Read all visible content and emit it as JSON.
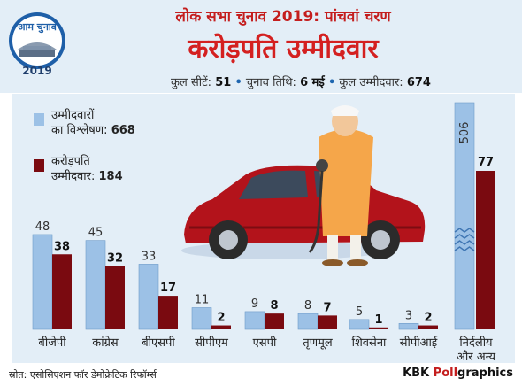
{
  "header": {
    "supertitle": "लोक सभा चुनाव 2019: पांचवां चरण",
    "title": "करोड़पति उम्मीदवार",
    "logo_text": "आम चुनाव",
    "logo_year": "2019"
  },
  "stats": {
    "seats_label": "कुल सीटें:",
    "seats_value": "51",
    "date_label": "चुनाव तिथि:",
    "date_value": "6 मई",
    "candidates_label": "कुल उम्मीदवार:",
    "candidates_value": "674"
  },
  "legend": {
    "analysed_line1": "उम्मीदवारों",
    "analysed_line2": "का विश्लेषण:",
    "analysed_value": "668",
    "crorepati_line1": "करोड़पति",
    "crorepati_line2": "उम्मीदवार:",
    "crorepati_value": "184"
  },
  "colors": {
    "analysed": "#9cc1e6",
    "crorepati": "#7a0a10",
    "title_red": "#d42020",
    "panel": "#e3eef7"
  },
  "chart_data": {
    "type": "bar",
    "categories": [
      "बीजेपी",
      "कांग्रेस",
      "बीएसपी",
      "सीपीएम",
      "एसपी",
      "तृणमूल",
      "शिवसेना",
      "सीपीआई",
      "निर्दलीय और अन्य"
    ],
    "series": [
      {
        "name": "उम्मीदवारों का विश्लेषण",
        "values": [
          48,
          45,
          33,
          11,
          9,
          8,
          5,
          3,
          506
        ]
      },
      {
        "name": "करोड़पति उम्मीदवार",
        "values": [
          38,
          32,
          17,
          2,
          8,
          7,
          1,
          2,
          77
        ]
      }
    ],
    "legend_position": "top-left",
    "axis_break": "last category bar is truncated with a zigzag break"
  },
  "footer": {
    "source": "स्रोत: एसोसिएशन फॉर डेमोक्रेटिक रिफॉर्म्स",
    "brand_a": "KBK ",
    "brand_b": "Poll",
    "brand_c": "graphics"
  }
}
